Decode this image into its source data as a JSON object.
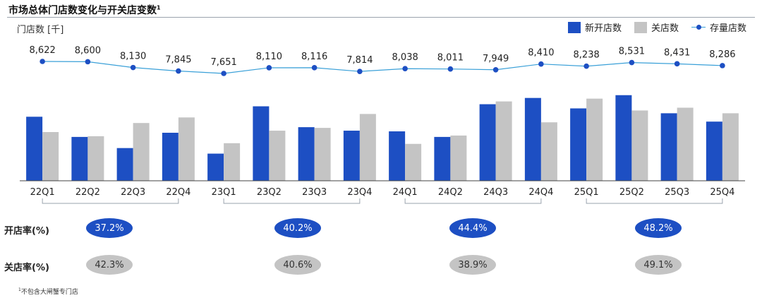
{
  "title": "市场总体门店数变化与开关店变数",
  "title_sup": "1",
  "unit_label": "门店数 [千]",
  "legend": {
    "new": "新开店数",
    "closed": "关店数",
    "stock": "存量店数"
  },
  "colors": {
    "new": "#1d4fc3",
    "closed": "#c4c4c4",
    "stock_line": "#3aa0d8",
    "stock_marker": "#1d4fc3",
    "axis": "#444444",
    "bracket": "#9aa3ad"
  },
  "chart_data": {
    "type": "bar+line",
    "categories": [
      "22Q1",
      "22Q2",
      "22Q3",
      "22Q4",
      "23Q1",
      "23Q2",
      "23Q3",
      "23Q4",
      "24Q1",
      "24Q2",
      "24Q3",
      "24Q4",
      "25Q1",
      "25Q2",
      "25Q3",
      "25Q4"
    ],
    "series": [
      {
        "name": "新开店数",
        "type": "bar",
        "values": [
          0.92,
          0.63,
          0.47,
          0.69,
          0.39,
          1.07,
          0.77,
          0.72,
          0.71,
          0.63,
          1.1,
          1.19,
          1.04,
          1.23,
          0.97,
          0.85
        ]
      },
      {
        "name": "关店数",
        "type": "bar",
        "values": [
          0.7,
          0.64,
          0.83,
          0.91,
          0.54,
          0.72,
          0.76,
          0.96,
          0.53,
          0.65,
          1.14,
          0.84,
          1.18,
          1.01,
          1.05,
          0.97
        ]
      },
      {
        "name": "存量店数",
        "type": "line",
        "values": [
          8622,
          8600,
          8130,
          7845,
          7651,
          8110,
          8116,
          7814,
          8038,
          8011,
          7949,
          8410,
          8238,
          8531,
          8431,
          8286
        ]
      }
    ],
    "stock_labels": [
      "8,622",
      "8,600",
      "8,130",
      "7,845",
      "7,651",
      "8,110",
      "8,116",
      "7,814",
      "8,038",
      "8,011",
      "7,949",
      "8,410",
      "8,238",
      "8,531",
      "8,431",
      "8,286"
    ],
    "bar_ylim": [
      0,
      1.4
    ],
    "line_ylim": [
      5500,
      9000
    ]
  },
  "rates": {
    "open_label": "开店率(%)",
    "close_label": "关店率(%)",
    "open": [
      "37.2%",
      "40.2%",
      "44.4%",
      "48.2%"
    ],
    "close": [
      "42.3%",
      "40.6%",
      "38.9%",
      "49.1%"
    ]
  },
  "footnote_sup": "1",
  "footnote": "不包含大闸蟹专门店"
}
